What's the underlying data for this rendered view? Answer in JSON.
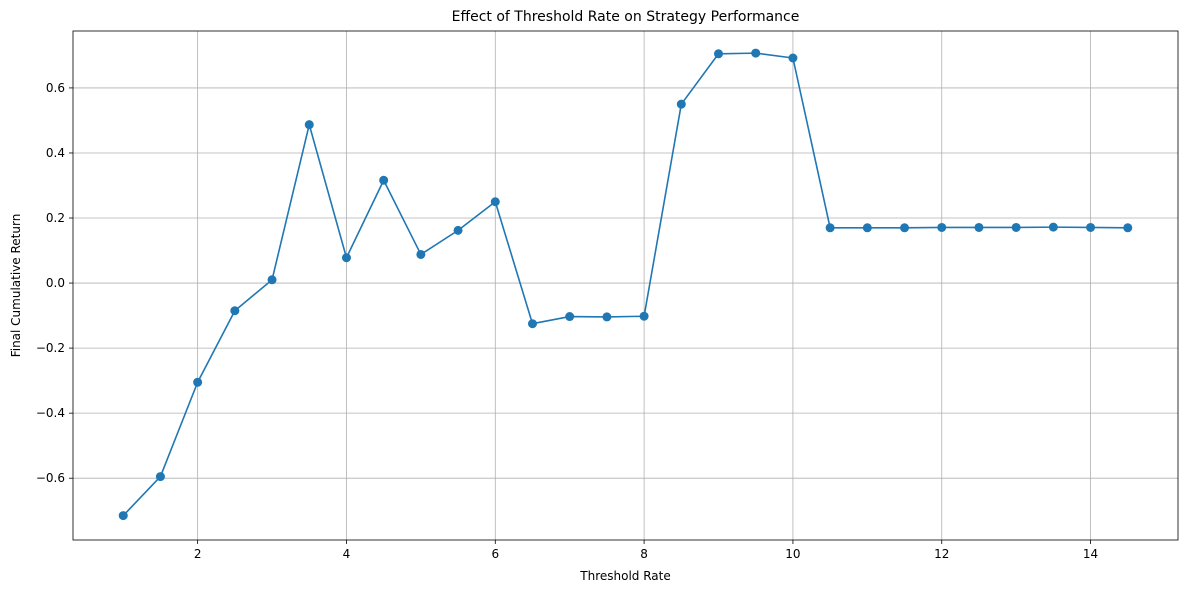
{
  "chart_data": {
    "type": "line",
    "title": "Effect of Threshold Rate on Strategy Performance",
    "xlabel": "Threshold Rate",
    "ylabel": "Final Cumulative Return",
    "xlim": [
      0.325,
      15.175
    ],
    "ylim": [
      -0.79,
      0.775
    ],
    "xticks": [
      2,
      4,
      6,
      8,
      10,
      12,
      14
    ],
    "yticks": [
      -0.6,
      -0.4,
      -0.2,
      0.0,
      0.2,
      0.4,
      0.6
    ],
    "grid": true,
    "series": [
      {
        "color": "#1f77b4",
        "marker": "circle",
        "x": [
          1.0,
          1.5,
          2.0,
          2.5,
          3.0,
          3.5,
          4.0,
          4.5,
          5.0,
          5.5,
          6.0,
          6.5,
          7.0,
          7.5,
          8.0,
          8.5,
          9.0,
          9.5,
          10.0,
          10.5,
          11.0,
          11.5,
          12.0,
          12.5,
          13.0,
          13.5,
          14.0,
          14.5
        ],
        "y": [
          -0.715,
          -0.595,
          -0.305,
          -0.085,
          0.01,
          0.487,
          0.078,
          0.316,
          0.088,
          0.162,
          0.25,
          -0.125,
          -0.103,
          -0.104,
          -0.102,
          0.55,
          0.705,
          0.707,
          0.692,
          0.17,
          0.17,
          0.17,
          0.171,
          0.171,
          0.171,
          0.172,
          0.171,
          0.17
        ]
      }
    ]
  }
}
